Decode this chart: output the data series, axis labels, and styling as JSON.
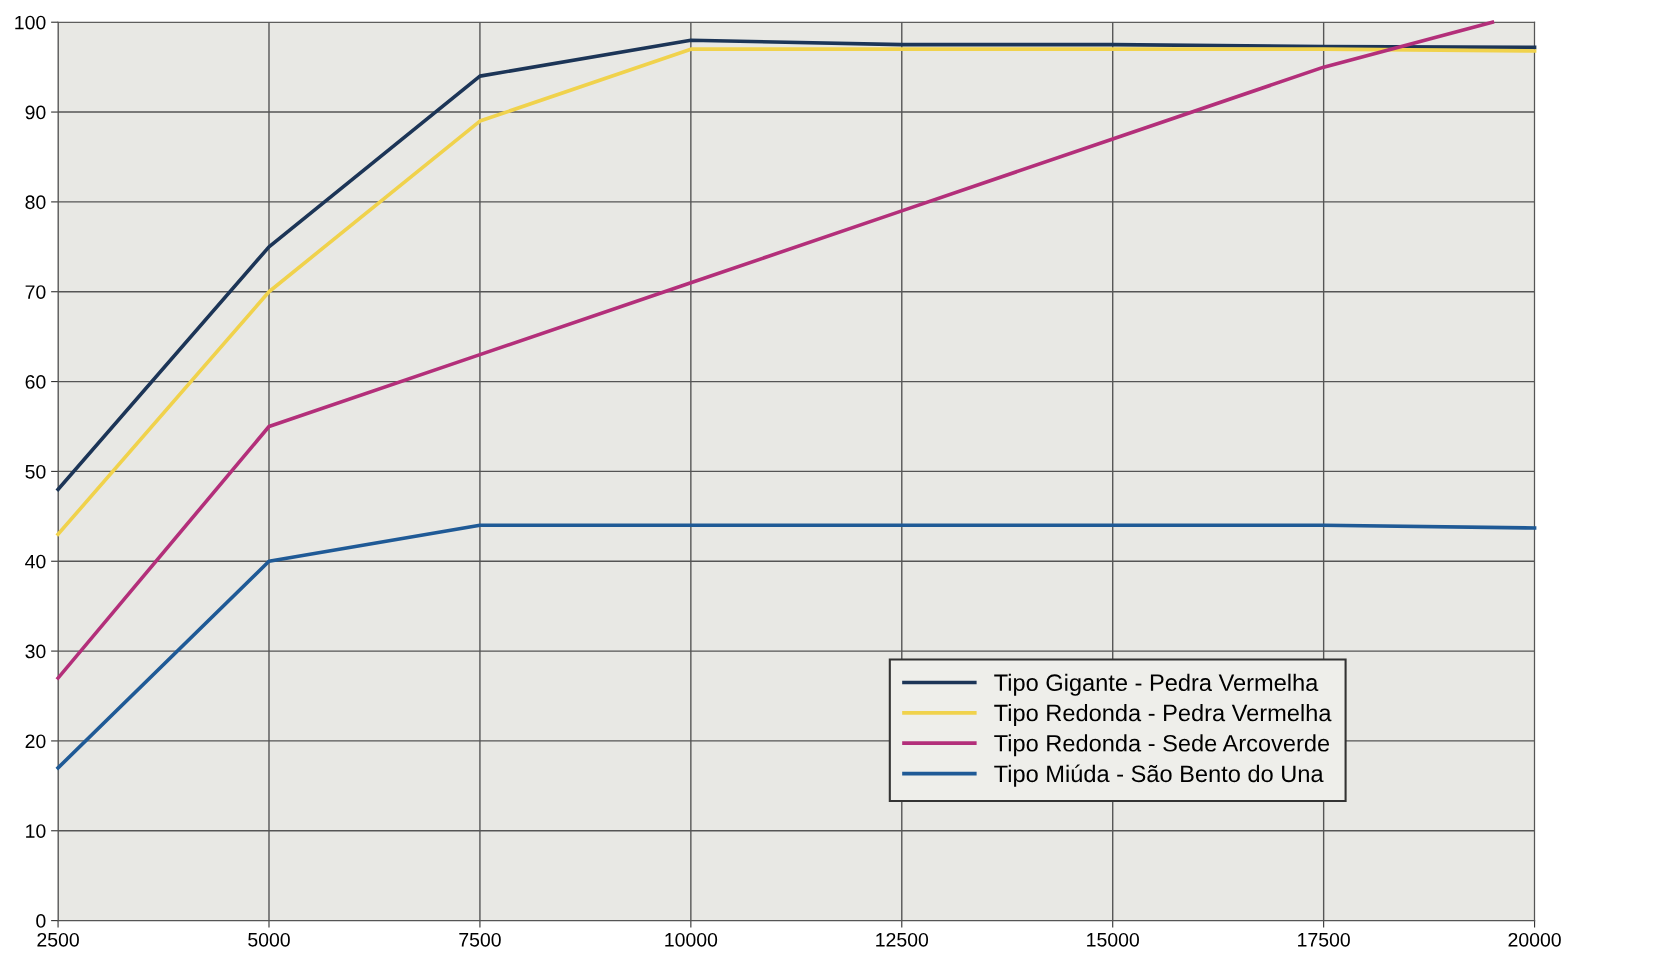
{
  "chart_data": {
    "type": "line",
    "x": [
      2500,
      5000,
      7500,
      10000,
      12500,
      15000,
      17500,
      20000
    ],
    "series": [
      {
        "name": "Tipo Gigante - Pedra Vermelha",
        "color": "#1c3557",
        "values": [
          48,
          75,
          94,
          98,
          97.5,
          97.5,
          97.3,
          97.2
        ]
      },
      {
        "name": "Tipo Redonda - Pedra Vermelha",
        "color": "#f0d24c",
        "values": [
          43,
          70,
          89,
          97,
          97,
          97,
          97,
          96.8
        ]
      },
      {
        "name": "Tipo Redonda - Sede Arcoverde",
        "color": "#b32f7a",
        "x": [
          2500,
          5000,
          7500,
          10000,
          12500,
          15000,
          17500,
          19500
        ],
        "values": [
          27,
          55,
          63,
          71,
          79,
          87,
          95,
          100
        ]
      },
      {
        "name": "Tipo Miúda - São Bento do Una",
        "color": "#1f5a96",
        "values": [
          17,
          40,
          44,
          44,
          44,
          44,
          44,
          43.7
        ]
      }
    ],
    "xlim": [
      2500,
      20000
    ],
    "xticks": [
      2500,
      5000,
      7500,
      10000,
      12500,
      15000,
      17500,
      20000
    ],
    "ylim": [
      0,
      100
    ],
    "yticks": [
      0,
      10,
      20,
      30,
      40,
      50,
      60,
      70,
      80,
      90,
      100
    ],
    "grid": true,
    "legend": "bottom right",
    "marker": "none",
    "line_style": "solid"
  }
}
